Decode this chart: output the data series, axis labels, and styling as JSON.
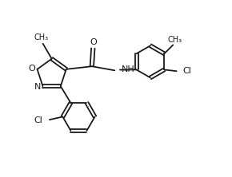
{
  "bg": "#ffffff",
  "lc": "#1a1a1a",
  "lw": 1.3,
  "fs": 7.5,
  "figsize": [
    2.9,
    2.22
  ],
  "dpi": 100,
  "xlim": [
    -0.5,
    6.5
  ],
  "ylim": [
    -1.5,
    4.5
  ]
}
